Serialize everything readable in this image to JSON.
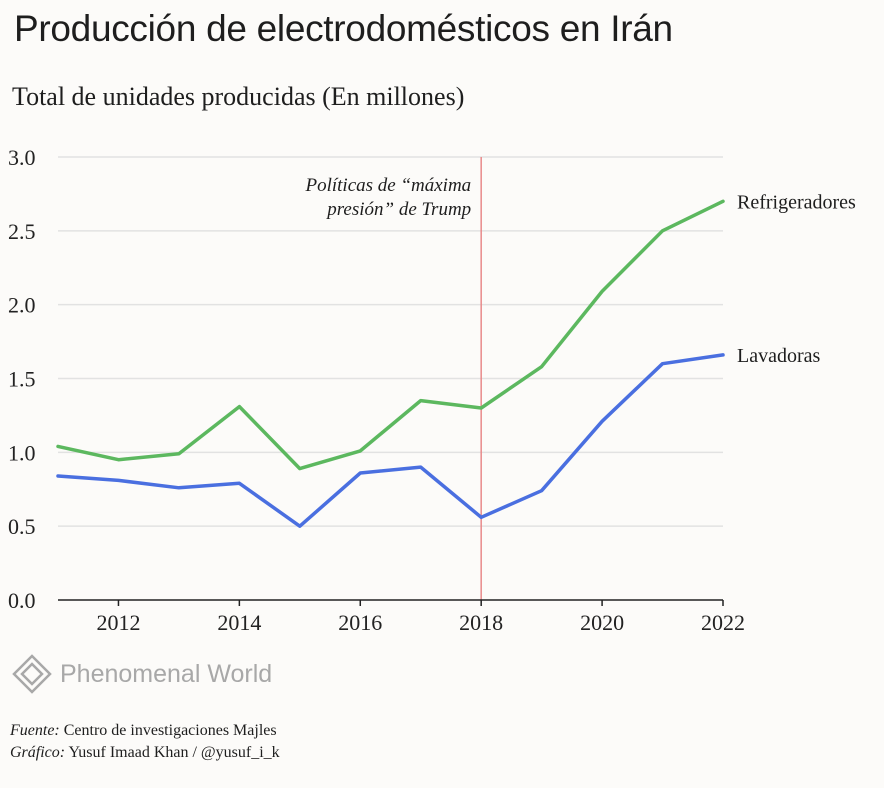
{
  "title": "Producción de electrodomésticos en Irán",
  "subtitle": "Total de unidades producidas (En millones)",
  "chart_data": {
    "type": "line",
    "x": [
      2011,
      2012,
      2013,
      2014,
      2015,
      2016,
      2017,
      2018,
      2019,
      2020,
      2021,
      2022
    ],
    "xticks": [
      "2012",
      "2014",
      "2016",
      "2018",
      "2020",
      "2022"
    ],
    "yticks": [
      "0.0",
      "0.5",
      "1.0",
      "1.5",
      "2.0",
      "2.5",
      "3.0"
    ],
    "ylim": [
      0,
      3
    ],
    "xlim": [
      2011,
      2022
    ],
    "grid": true,
    "series": [
      {
        "name": "Refrigeradores",
        "color": "#5cb85f",
        "values": [
          1.04,
          0.95,
          0.99,
          1.31,
          0.89,
          1.01,
          1.35,
          1.3,
          1.58,
          2.09,
          2.5,
          2.7
        ]
      },
      {
        "name": "Lavadoras",
        "color": "#4a6fe0",
        "values": [
          0.84,
          0.81,
          0.76,
          0.79,
          0.5,
          0.86,
          0.9,
          0.56,
          0.74,
          1.21,
          1.6,
          1.66
        ]
      }
    ],
    "annotation": {
      "x": 2018,
      "color": "#e88a8a",
      "lines": [
        "Políticas de “máxima",
        "presión” de Trump"
      ]
    }
  },
  "logo": {
    "text": "Phenomenal World",
    "icon": "diamond-icon",
    "color": "#a8a8a8"
  },
  "footer": {
    "source_label": "Fuente:",
    "source_text": " Centro de investigaciones Majles",
    "credit_label": "Gráfico:",
    "credit_text": " Yusuf Imaad Khan / @yusuf_i_k"
  }
}
